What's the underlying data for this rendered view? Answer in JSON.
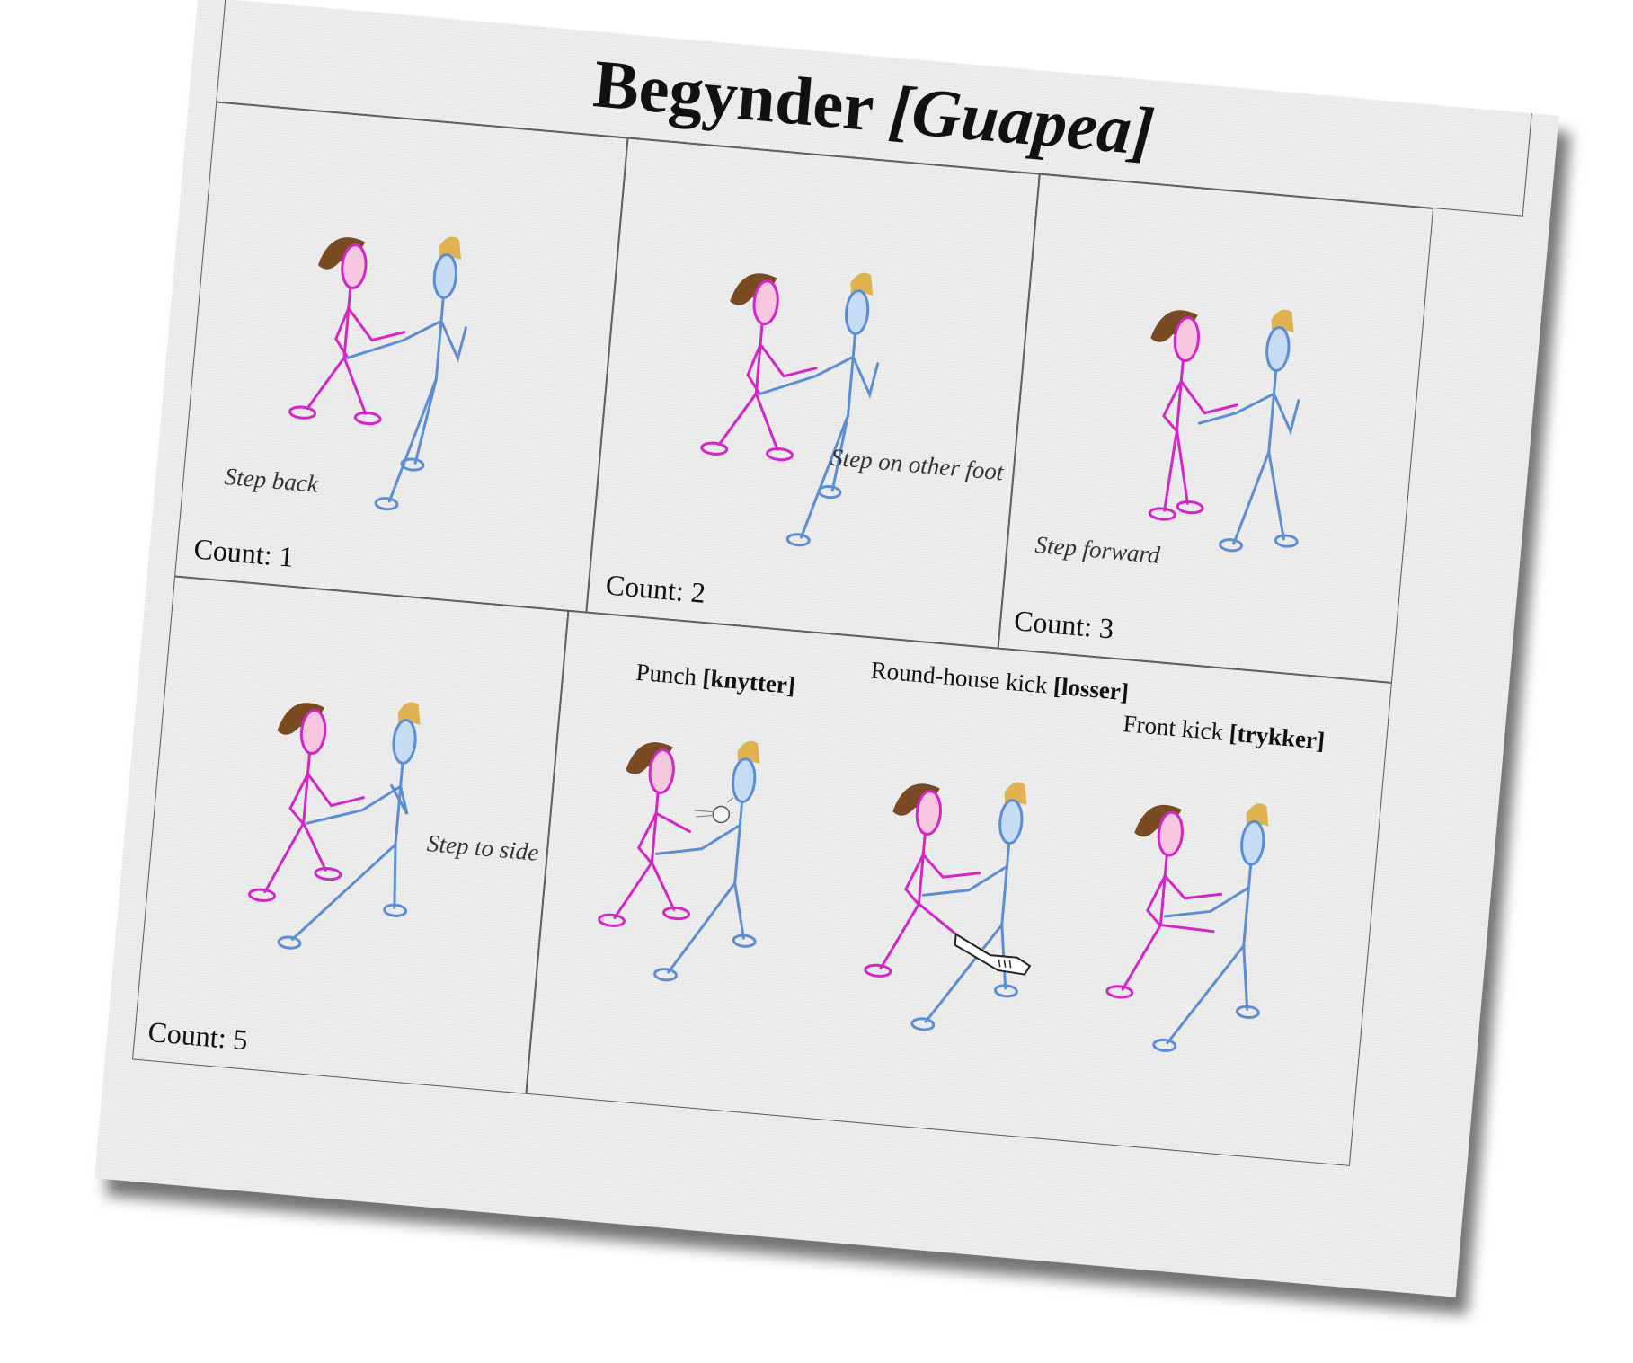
{
  "title": {
    "main": "Begynder",
    "sub": "[Guapea]"
  },
  "panels": {
    "p1": {
      "caption": "Step back",
      "count": "Count: 1"
    },
    "p2": {
      "caption": "Step on other foot",
      "count": "Count: 2"
    },
    "p3": {
      "caption": "Step forward",
      "count": "Count: 3"
    },
    "p5": {
      "caption": "Step to side",
      "count": "Count: 5"
    },
    "p6": {
      "punch": {
        "label": "Punch",
        "term": "[knytter]"
      },
      "roundhouse": {
        "label": "Round-house kick",
        "term": "[losser]"
      },
      "front": {
        "label": "Front kick",
        "term": "[trykker]"
      }
    }
  },
  "colors": {
    "woman": "#d426c8",
    "man": "#5b8ed4",
    "woman_hair": "#7a4a22",
    "man_hair": "#e0b350"
  }
}
